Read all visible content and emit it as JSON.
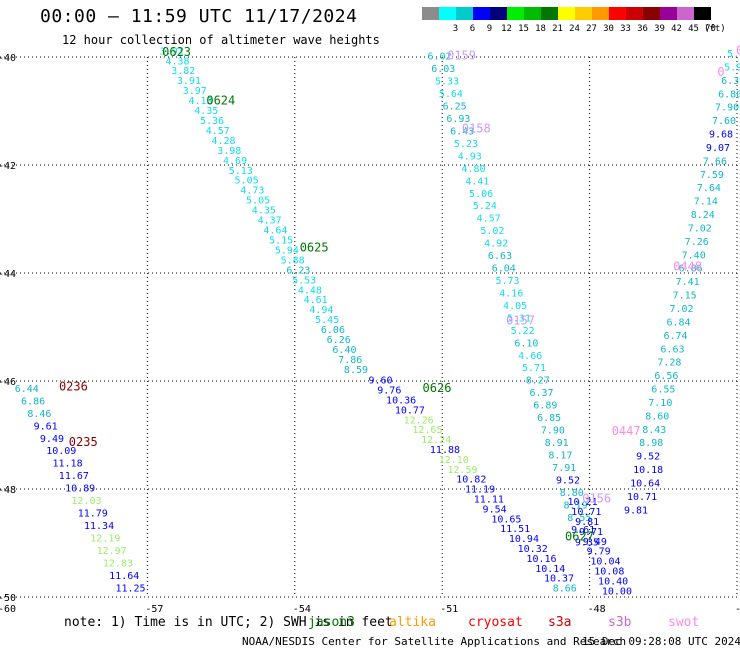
{
  "header": {
    "title": "00:00 – 11:59 UTC 11/17/2024",
    "subtitle": "12 hour collection of altimeter wave heights"
  },
  "legend": {
    "unit_label": "(ft)",
    "bins": [
      {
        "label": "",
        "color": "#8c8c8c"
      },
      {
        "label": "3",
        "color": "#00ffff"
      },
      {
        "label": "6",
        "color": "#00cccc"
      },
      {
        "label": "9",
        "color": "#0000ff"
      },
      {
        "label": "12",
        "color": "#00007f"
      },
      {
        "label": "15",
        "color": "#00ee00"
      },
      {
        "label": "18",
        "color": "#00bb00"
      },
      {
        "label": "21",
        "color": "#007700"
      },
      {
        "label": "24",
        "color": "#ffff00"
      },
      {
        "label": "27",
        "color": "#ffcc00"
      },
      {
        "label": "30",
        "color": "#ff9900"
      },
      {
        "label": "33",
        "color": "#ff0000"
      },
      {
        "label": "36",
        "color": "#cc0000"
      },
      {
        "label": "39",
        "color": "#8b0000"
      },
      {
        "label": "42",
        "color": "#990099"
      },
      {
        "label": "45",
        "color": "#cc66cc"
      },
      {
        "label": "70",
        "color": "#000000"
      }
    ]
  },
  "axes": {
    "lon": [
      {
        "label": "-57",
        "value": -57
      },
      {
        "label": "-54",
        "value": -54
      },
      {
        "label": "-51",
        "value": -51
      },
      {
        "label": "-48",
        "value": -48
      },
      {
        "label": "-45",
        "value": -45
      }
    ],
    "lat": [
      {
        "label": "-40",
        "value": -40
      },
      {
        "label": "-42",
        "value": -42
      },
      {
        "label": "-44",
        "value": -44
      },
      {
        "label": "-46",
        "value": -46
      },
      {
        "label": "-48",
        "value": -48
      },
      {
        "label": "-50",
        "value": -50
      }
    ],
    "corner_lat": "-50",
    "corner_lon": "-60"
  },
  "footer": {
    "note_prefix": "note:  1) Time is in UTC; 2) SWH is in feet",
    "satellites": [
      {
        "name": "jason3",
        "color": "#007700"
      },
      {
        "name": "altika",
        "color": "#ff9900"
      },
      {
        "name": "cryosat",
        "color": "#ff0000"
      },
      {
        "name": "s3a",
        "color": "#cc0000"
      },
      {
        "name": "s3b",
        "color": "#cc66cc"
      },
      {
        "name": "swot",
        "color": "#ff88ee"
      }
    ],
    "credit": "NOAA/NESDIS Center for Satellite Applications and Research",
    "timestamp": "15 Dec 09:28:08 UTC 2024"
  },
  "pass_labels": [
    {
      "text": "0623",
      "color": "#007700",
      "lon": -56.7,
      "lat": -39.98
    },
    {
      "text": "0624",
      "color": "#007700",
      "lon": -55.8,
      "lat": -40.88
    },
    {
      "text": "0625",
      "color": "#007700",
      "lon": -53.9,
      "lat": -43.6
    },
    {
      "text": "0626",
      "color": "#007700",
      "lon": -51.4,
      "lat": -46.2
    },
    {
      "text": "0627",
      "color": "#007700",
      "lon": -48.5,
      "lat": -48.95
    },
    {
      "text": "0236",
      "color": "#8b0000",
      "lon": -58.8,
      "lat": -46.18
    },
    {
      "text": "0235",
      "color": "#8b0000",
      "lon": -58.6,
      "lat": -47.2
    },
    {
      "text": "0159",
      "color": "#cc99ff",
      "lon": -50.9,
      "lat": -40.05
    },
    {
      "text": "0158",
      "color": "#cc99ff",
      "lon": -50.6,
      "lat": -41.4
    },
    {
      "text": "0157",
      "color": "#cc99ff",
      "lon": -49.7,
      "lat": -44.95
    },
    {
      "text": "0156",
      "color": "#cc99ff",
      "lon": -48.15,
      "lat": -48.25
    },
    {
      "text": "0448",
      "color": "#ff88ee",
      "lon": -46.3,
      "lat": -43.95
    },
    {
      "text": "0447",
      "color": "#ff88ee",
      "lon": -47.55,
      "lat": -47.0
    },
    {
      "text": "0",
      "color": "#ff88ee",
      "lon": -45.4,
      "lat": -40.35
    },
    {
      "text": "0",
      "color": "#ff88ee",
      "lon": -45.02,
      "lat": -39.95
    }
  ],
  "tracks": [
    {
      "values": [
        "3.91",
        "4.38",
        "3.82",
        "3.91",
        "3.97",
        "4.13",
        "4.35",
        "5.36",
        "4.57",
        "4.28",
        "3.98",
        "4.69",
        "5.13",
        "5.05",
        "4.73",
        "5.05",
        "4.35",
        "4.37",
        "4.64",
        "5.15",
        "5.94",
        "5.88",
        "6.23",
        "5.53",
        "4.48",
        "4.61",
        "4.94",
        "5.45",
        "6.06",
        "6.26",
        "6.40",
        "7.86",
        "8.59"
      ],
      "start": {
        "lon": -56.75,
        "lat": -39.95
      },
      "end": {
        "lon": -53.0,
        "lat": -45.85
      }
    },
    {
      "values": [
        "9.60",
        "9.76",
        "10.36",
        "10.77",
        "12.26",
        "12.65",
        "12.24",
        "11.88",
        "12.10",
        "12.59",
        "10.82",
        "11.19",
        "11.11",
        "9.54",
        "10.65",
        "11.51",
        "10.94",
        "10.32",
        "10.16",
        "10.14",
        "10.37",
        "8.66"
      ],
      "start": {
        "lon": -52.5,
        "lat": -46.05
      },
      "end": {
        "lon": -48.75,
        "lat": -49.9
      }
    },
    {
      "values": [
        "6.02",
        "6.03",
        "5.33",
        "5.64",
        "6.25",
        "6.93",
        "6.43",
        "5.23",
        "4.93",
        "4.80",
        "4.41",
        "5.06",
        "5.24",
        "4.57",
        "5.02",
        "4.92",
        "6.63",
        "6.04",
        "5.73",
        "4.16",
        "4.05",
        "5.31",
        "5.22",
        "6.10",
        "4.66",
        "5.71",
        "8.27",
        "6.37",
        "6.89",
        "6.85",
        "7.90",
        "8.91",
        "8.17",
        "7.91",
        "9.52",
        "8.80",
        "8.19",
        "8.55",
        "9.61",
        "9.35"
      ],
      "start": {
        "lon": -51.3,
        "lat": -40.05
      },
      "end": {
        "lon": -48.3,
        "lat": -49.05
      }
    },
    {
      "values": [
        "10.21",
        "10.71",
        "9.81",
        "9.71",
        "9.49",
        "9.79",
        "10.04",
        "10.08",
        "10.40",
        "10.00"
      ],
      "start": {
        "lon": -48.45,
        "lat": -48.3
      },
      "end": {
        "lon": -47.75,
        "lat": -49.95
      }
    },
    {
      "values": [
        "5.96",
        "5.90",
        "6.31",
        "6.80",
        "7.90",
        "7.60",
        "9.68",
        "9.07",
        "7.66",
        "7.59",
        "7.64",
        "7.14",
        "8.24",
        "7.02",
        "7.26",
        "7.40",
        "6.86",
        "7.41",
        "7.15",
        "7.02",
        "6.84",
        "6.74",
        "6.63",
        "7.28",
        "6.56",
        "6.55",
        "7.10",
        "8.60",
        "8.43",
        "8.98",
        "9.52",
        "10.18",
        "10.64",
        "10.71",
        "9.81"
      ],
      "start": {
        "lon": -45.2,
        "lat": -40.0
      },
      "end": {
        "lon": -47.3,
        "lat": -48.45
      }
    },
    {
      "values": [
        "6.44",
        "6.86",
        "8.46",
        "9.61",
        "9.49",
        "10.09",
        "11.18",
        "11.67",
        "10.89",
        "12.03",
        "11.79",
        "11.34",
        "12.19",
        "12.97",
        "12.83",
        "11.64",
        "11.25"
      ],
      "start": {
        "lon": -59.7,
        "lat": -46.2
      },
      "end": {
        "lon": -57.65,
        "lat": -49.9
      }
    }
  ]
}
